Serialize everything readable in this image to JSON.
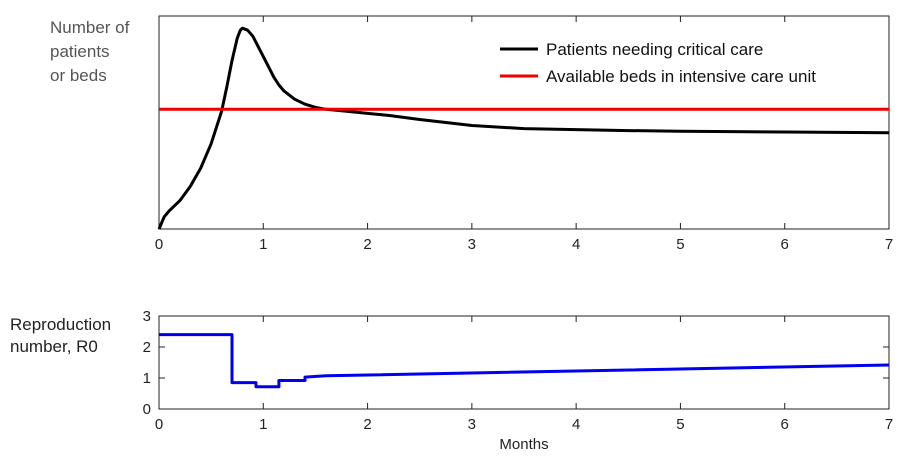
{
  "chart_data": [
    {
      "type": "line",
      "ylabel": [
        "Number of",
        "patients",
        "or beds"
      ],
      "xlim": [
        0,
        7
      ],
      "xticks": [
        "0",
        "1",
        "2",
        "3",
        "4",
        "5",
        "6",
        "7"
      ],
      "yticks": [],
      "legend": "top-right",
      "grid": false,
      "series": [
        {
          "name": "Patients needing critical care",
          "color": "#000000",
          "x": [
            0,
            0.05,
            0.1,
            0.2,
            0.3,
            0.4,
            0.5,
            0.6,
            0.65,
            0.7,
            0.75,
            0.78,
            0.8,
            0.85,
            0.9,
            0.95,
            1.0,
            1.05,
            1.1,
            1.15,
            1.2,
            1.3,
            1.4,
            1.5,
            1.6,
            1.7,
            1.8,
            2.0,
            2.2,
            2.5,
            3.0,
            3.5,
            4.0,
            4.5,
            5.0,
            5.5,
            6.0,
            6.5,
            7.0
          ],
          "y": [
            0,
            0.06,
            0.09,
            0.14,
            0.21,
            0.3,
            0.42,
            0.58,
            0.7,
            0.83,
            0.94,
            0.98,
            0.99,
            0.98,
            0.95,
            0.9,
            0.85,
            0.8,
            0.75,
            0.71,
            0.68,
            0.64,
            0.615,
            0.6,
            0.59,
            0.585,
            0.58,
            0.57,
            0.56,
            0.54,
            0.51,
            0.495,
            0.49,
            0.485,
            0.482,
            0.48,
            0.478,
            0.476,
            0.474
          ]
        },
        {
          "name": "Available beds in intensive care unit",
          "color": "#ee0000",
          "x": [
            0,
            7
          ],
          "y": [
            0.59,
            0.59
          ]
        }
      ]
    },
    {
      "type": "line",
      "ylabel": [
        "Reproduction",
        "number, R0"
      ],
      "xlabel": "Months",
      "xlim": [
        0,
        7
      ],
      "ylim": [
        0,
        3
      ],
      "xticks": [
        "0",
        "1",
        "2",
        "3",
        "4",
        "5",
        "6",
        "7"
      ],
      "yticks": [
        "0",
        "1",
        "2",
        "3"
      ],
      "grid": false,
      "series": [
        {
          "color": "#0000ee",
          "step": true,
          "x": [
            0,
            0.7,
            0.7,
            0.93,
            0.93,
            1.15,
            1.15,
            1.4,
            1.4,
            1.6,
            7.0
          ],
          "y": [
            2.4,
            2.4,
            0.85,
            0.85,
            0.72,
            0.72,
            0.92,
            0.92,
            1.03,
            1.07,
            1.42
          ]
        }
      ]
    }
  ]
}
